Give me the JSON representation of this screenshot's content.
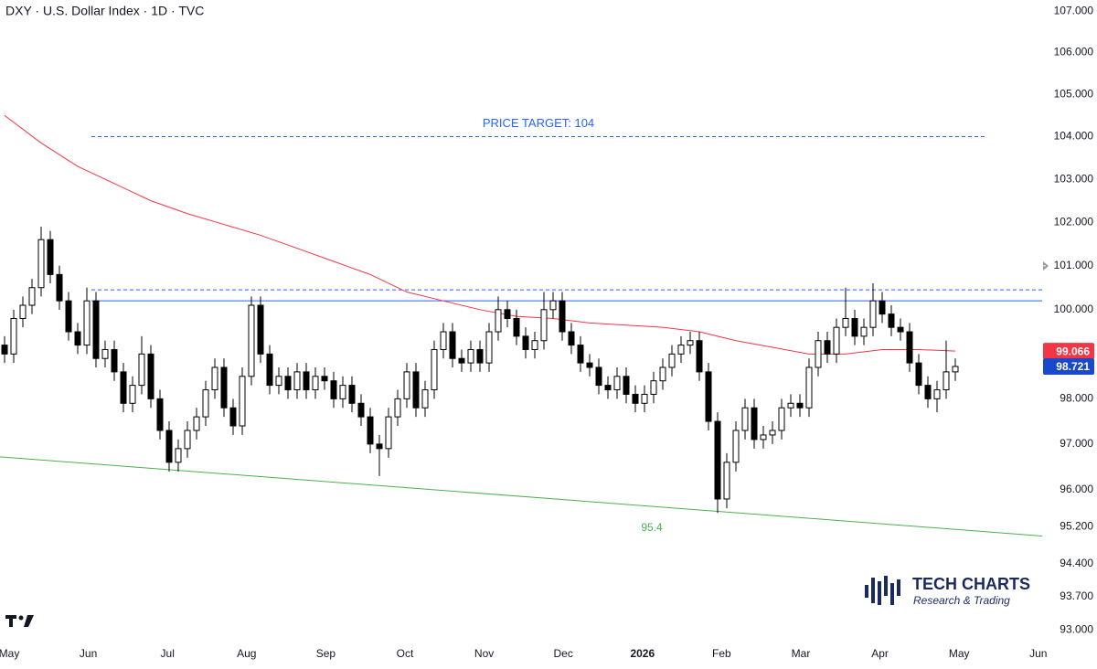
{
  "header": {
    "title": "DXY · U.S. Dollar Index · 1D · TVC"
  },
  "chart_data": {
    "type": "candlestick",
    "log_scale": true,
    "ylim": [
      92.6,
      107.27
    ],
    "yticks": [
      {
        "value": 107,
        "label": "107.000"
      },
      {
        "value": 106,
        "label": "106.000"
      },
      {
        "value": 105,
        "label": "105.000"
      },
      {
        "value": 104,
        "label": "104.000"
      },
      {
        "value": 103,
        "label": "103.000"
      },
      {
        "value": 102,
        "label": "102.000"
      },
      {
        "value": 101,
        "label": "101.000"
      },
      {
        "value": 100,
        "label": "100.000"
      },
      {
        "value": 98,
        "label": "98.000"
      },
      {
        "value": 97,
        "label": "97.000"
      },
      {
        "value": 96,
        "label": "96.000"
      },
      {
        "value": 95.2,
        "label": "95.200"
      },
      {
        "value": 94.4,
        "label": "94.400"
      },
      {
        "value": 93.7,
        "label": "93.700"
      },
      {
        "value": 93,
        "label": "93.000"
      }
    ],
    "xticks": [
      "May",
      "Jun",
      "Jul",
      "Aug",
      "Sep",
      "Oct",
      "Nov",
      "Dec",
      "2026",
      "Feb",
      "Mar",
      "Apr",
      "May",
      "Jun"
    ],
    "up_color": "#ffffff",
    "down_color": "#000000",
    "open": [
      99.2,
      99.0,
      99.8,
      100.1,
      100.5,
      101.6,
      100.8,
      100.2,
      99.5,
      99.2,
      100.2,
      98.9,
      99.1,
      98.6,
      97.9,
      98.3,
      99.0,
      98.0,
      97.3,
      96.6,
      96.9,
      97.3,
      97.6,
      98.2,
      98.7,
      97.8,
      97.4,
      98.5,
      100.1,
      99.0,
      98.3,
      98.5,
      98.2,
      98.6,
      98.2,
      98.5,
      98.4,
      98.0,
      98.3,
      97.9,
      97.6,
      97.0,
      96.9,
      97.6,
      98.0,
      98.6,
      97.8,
      98.2,
      99.1,
      99.5,
      98.9,
      98.8,
      99.1,
      98.8,
      99.5,
      100.0,
      99.8,
      99.4,
      99.1,
      99.3,
      100.0,
      100.2,
      99.5,
      99.2,
      98.8,
      98.7,
      98.3,
      98.2,
      98.5,
      98.1,
      97.9,
      98.1,
      98.4,
      98.7,
      99.0,
      99.2,
      99.3,
      98.6,
      97.5,
      95.8,
      96.6,
      97.3,
      97.8,
      97.1,
      97.2,
      97.3,
      97.8,
      97.9,
      97.8,
      98.7,
      99.3,
      99.0,
      99.6,
      99.8,
      99.4,
      99.6,
      100.2,
      99.9,
      99.6,
      99.5,
      98.8,
      98.3,
      98.0,
      98.2,
      98.6
    ],
    "high": [
      99.4,
      100.0,
      100.3,
      100.7,
      101.9,
      101.8,
      101.0,
      100.4,
      99.7,
      100.5,
      100.4,
      99.3,
      99.3,
      98.8,
      98.5,
      99.4,
      99.2,
      98.2,
      97.5,
      97.1,
      97.5,
      97.8,
      98.4,
      98.9,
      98.9,
      98.0,
      98.7,
      100.3,
      100.3,
      99.2,
      98.7,
      98.7,
      98.8,
      98.8,
      98.7,
      98.7,
      98.6,
      98.5,
      98.5,
      98.1,
      97.8,
      97.2,
      97.8,
      98.2,
      98.8,
      98.8,
      98.4,
      99.3,
      99.7,
      99.7,
      99.1,
      99.3,
      99.3,
      99.7,
      100.3,
      100.2,
      100.0,
      99.6,
      99.5,
      100.4,
      100.4,
      100.4,
      99.7,
      99.4,
      99.0,
      98.9,
      98.5,
      98.7,
      98.7,
      98.3,
      98.3,
      98.6,
      98.9,
      99.2,
      99.4,
      99.5,
      99.5,
      98.8,
      97.7,
      96.8,
      97.5,
      98.0,
      98.0,
      97.4,
      97.5,
      98.0,
      98.1,
      98.1,
      98.9,
      99.5,
      99.5,
      99.8,
      100.5,
      100.0,
      99.8,
      100.6,
      100.4,
      100.1,
      99.8,
      99.7,
      99.0,
      98.5,
      98.4,
      99.3,
      98.9
    ],
    "low": [
      98.8,
      98.8,
      99.6,
      99.9,
      100.3,
      100.6,
      100.0,
      99.3,
      99.0,
      99.0,
      98.7,
      98.7,
      98.4,
      97.7,
      97.7,
      98.1,
      97.8,
      97.1,
      96.4,
      96.4,
      96.7,
      97.1,
      97.4,
      98.0,
      97.6,
      97.2,
      97.2,
      98.3,
      98.8,
      98.1,
      98.1,
      98.0,
      98.0,
      98.0,
      98.0,
      98.2,
      97.8,
      97.8,
      97.7,
      97.4,
      96.8,
      96.3,
      96.7,
      97.4,
      97.8,
      97.6,
      97.6,
      98.0,
      98.9,
      98.7,
      98.6,
      98.6,
      98.6,
      98.6,
      99.3,
      99.6,
      99.2,
      98.9,
      98.9,
      99.1,
      99.8,
      99.3,
      99.0,
      98.6,
      98.5,
      98.1,
      98.0,
      98.0,
      97.9,
      97.7,
      97.7,
      97.9,
      98.2,
      98.5,
      98.8,
      99.0,
      98.4,
      97.3,
      95.5,
      95.6,
      96.4,
      97.1,
      96.9,
      96.9,
      97.0,
      97.1,
      97.6,
      97.6,
      97.6,
      98.5,
      98.8,
      98.8,
      99.4,
      99.2,
      99.2,
      99.4,
      99.7,
      99.4,
      99.3,
      98.6,
      98.1,
      97.8,
      97.7,
      98.0,
      98.4
    ],
    "close": [
      99.0,
      99.8,
      100.1,
      100.5,
      101.6,
      100.8,
      100.2,
      99.5,
      99.2,
      100.2,
      98.9,
      99.1,
      98.6,
      97.9,
      98.3,
      99.0,
      98.0,
      97.3,
      96.6,
      96.9,
      97.3,
      97.6,
      98.2,
      98.7,
      97.8,
      97.4,
      98.5,
      100.1,
      99.0,
      98.3,
      98.5,
      98.2,
      98.6,
      98.2,
      98.5,
      98.4,
      98.0,
      98.3,
      97.9,
      97.6,
      97.0,
      96.9,
      97.6,
      98.0,
      98.6,
      97.8,
      98.2,
      99.1,
      99.5,
      98.9,
      98.8,
      99.1,
      98.8,
      99.5,
      100.0,
      99.8,
      99.4,
      99.1,
      99.3,
      100.0,
      100.2,
      99.5,
      99.2,
      98.8,
      98.7,
      98.3,
      98.2,
      98.5,
      98.1,
      97.9,
      98.1,
      98.4,
      98.7,
      99.0,
      99.2,
      99.3,
      98.6,
      97.5,
      95.8,
      96.6,
      97.3,
      97.8,
      97.1,
      97.2,
      97.3,
      97.8,
      97.9,
      97.8,
      98.7,
      99.3,
      99.0,
      99.6,
      99.8,
      99.4,
      99.6,
      100.2,
      99.9,
      99.6,
      99.5,
      98.8,
      98.3,
      98.0,
      98.2,
      98.6,
      98.721
    ],
    "last_color": "#1848cc",
    "ma": {
      "color": "#f23645",
      "values": [
        104.5,
        103.85,
        103.3,
        102.9,
        102.5,
        102.2,
        101.95,
        101.7,
        101.4,
        101.1,
        100.8,
        100.4,
        100.2,
        100.0,
        99.85,
        99.8,
        99.7,
        99.65,
        99.6,
        99.5,
        99.3,
        99.15,
        99.0,
        99.0,
        99.1,
        99.1,
        99.066
      ]
    },
    "levels": [
      {
        "value": 104,
        "style": "dashed",
        "color": "#2962ff",
        "label": "PRICE TARGET: 104"
      },
      {
        "value": 100.45,
        "style": "dashed",
        "color": "#2962ff"
      },
      {
        "value": 100.2,
        "style": "solid",
        "color": "#2962ff"
      }
    ],
    "trendline": {
      "values": [
        96.72,
        95.0
      ],
      "color": "#4caf50",
      "label": "95.4"
    },
    "logo": {
      "name": "TECH CHARTS",
      "tagline": "Research & Trading"
    }
  }
}
